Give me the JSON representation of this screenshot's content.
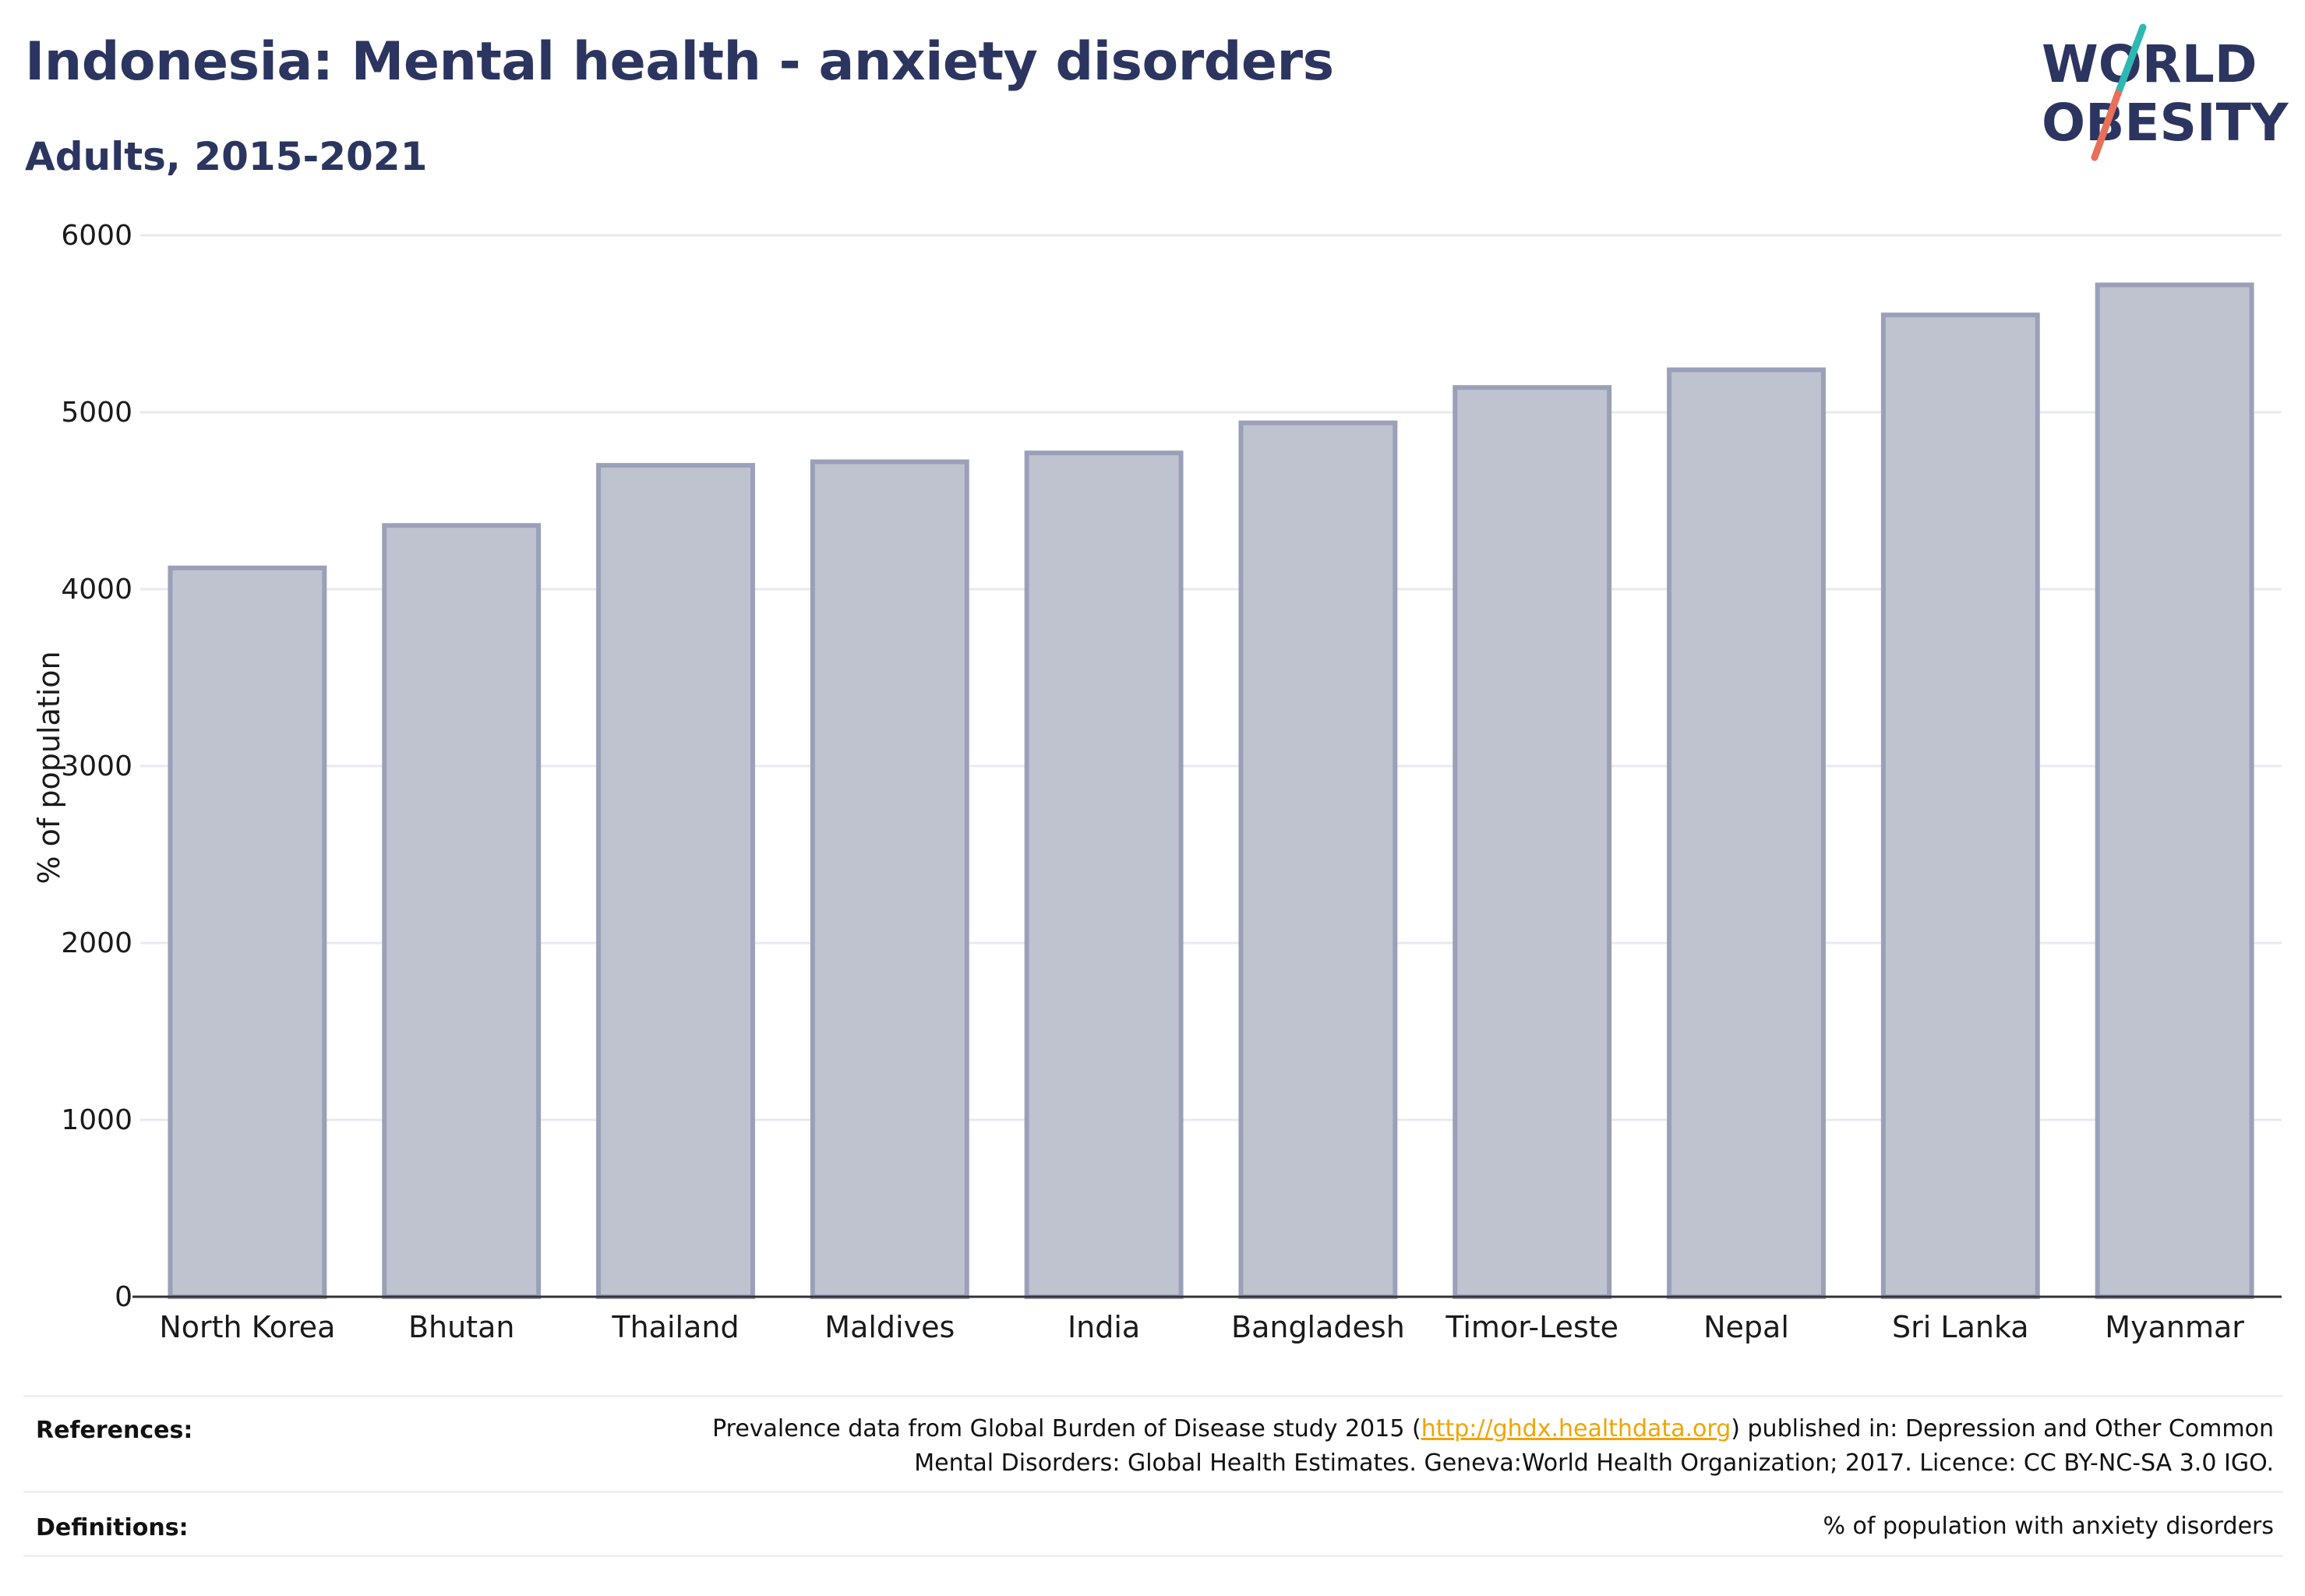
{
  "header": {
    "title": "Indonesia: Mental health - anxiety disorders",
    "subtitle": "Adults, 2015-2021"
  },
  "logo": {
    "line1": "WORLD",
    "line2": "OBESITY",
    "text_color": "#2b3560",
    "slash_colors": [
      "#2fb8b2",
      "#e8705a"
    ]
  },
  "chart_data": {
    "type": "bar",
    "title": "Indonesia: Mental health - anxiety disorders",
    "subtitle": "Adults, 2015-2021",
    "xlabel": "",
    "ylabel": "% of population",
    "categories": [
      "North Korea",
      "Bhutan",
      "Thailand",
      "Maldives",
      "India",
      "Bangladesh",
      "Timor-Leste",
      "Nepal",
      "Sri Lanka",
      "Myanmar"
    ],
    "values": [
      4120,
      4360,
      4700,
      4720,
      4770,
      4940,
      5140,
      5240,
      5550,
      5720
    ],
    "ylim": [
      0,
      6000
    ],
    "yticks": [
      0,
      1000,
      2000,
      3000,
      4000,
      5000,
      6000
    ],
    "grid": true,
    "legend": "none",
    "bar_fill": "#bfc3d0",
    "bar_stroke": "#9aa0b8"
  },
  "footer": {
    "references_label": "References:",
    "references_text_before": "Prevalence data from Global Burden of Disease study 2015 (",
    "references_link": "http://ghdx.healthdata.org",
    "references_text_after": ") published in: Depression and Other Common",
    "references_line2": "Mental Disorders: Global Health Estimates. Geneva:World Health Organization; 2017. Licence: CC BY-NC-SA 3.0 IGO.",
    "definitions_label": "Definitions:",
    "definitions_text": "% of population with anxiety disorders"
  }
}
